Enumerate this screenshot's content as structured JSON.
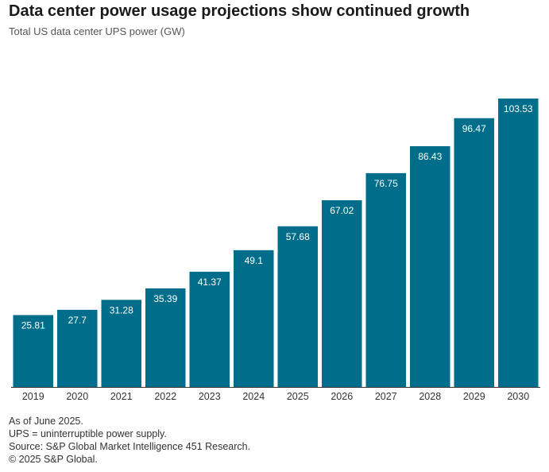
{
  "header": {
    "title": "Data center power usage projections show continued growth",
    "subtitle": "Total US data center UPS power (GW)"
  },
  "notes": {
    "as_of": "As of June 2025.",
    "definition": "UPS = uninterruptible power supply.",
    "source": "Source: S&P Global Market Intelligence 451 Research.",
    "copyright": "© 2025 S&P Global."
  },
  "colors": {
    "bar": "#006e8a",
    "axis": "#333333",
    "bar_label": "#ffffff"
  },
  "chart_data": {
    "type": "bar",
    "title": "Data center power usage projections show continued growth",
    "subtitle": "Total US data center UPS power (GW)",
    "xlabel": "",
    "ylabel": "",
    "grid": false,
    "legend": "none",
    "ylim": [
      0,
      103.53
    ],
    "categories": [
      "2019",
      "2020",
      "2021",
      "2022",
      "2023",
      "2024",
      "2025",
      "2026",
      "2027",
      "2028",
      "2029",
      "2030"
    ],
    "values": [
      25.81,
      27.7,
      31.28,
      35.39,
      41.37,
      49.1,
      57.68,
      67.02,
      76.75,
      86.43,
      96.47,
      103.53
    ],
    "value_labels": [
      "25.81",
      "27.7",
      "31.28",
      "35.39",
      "41.37",
      "49.1",
      "57.68",
      "67.02",
      "76.75",
      "86.43",
      "96.47",
      "103.53"
    ]
  }
}
